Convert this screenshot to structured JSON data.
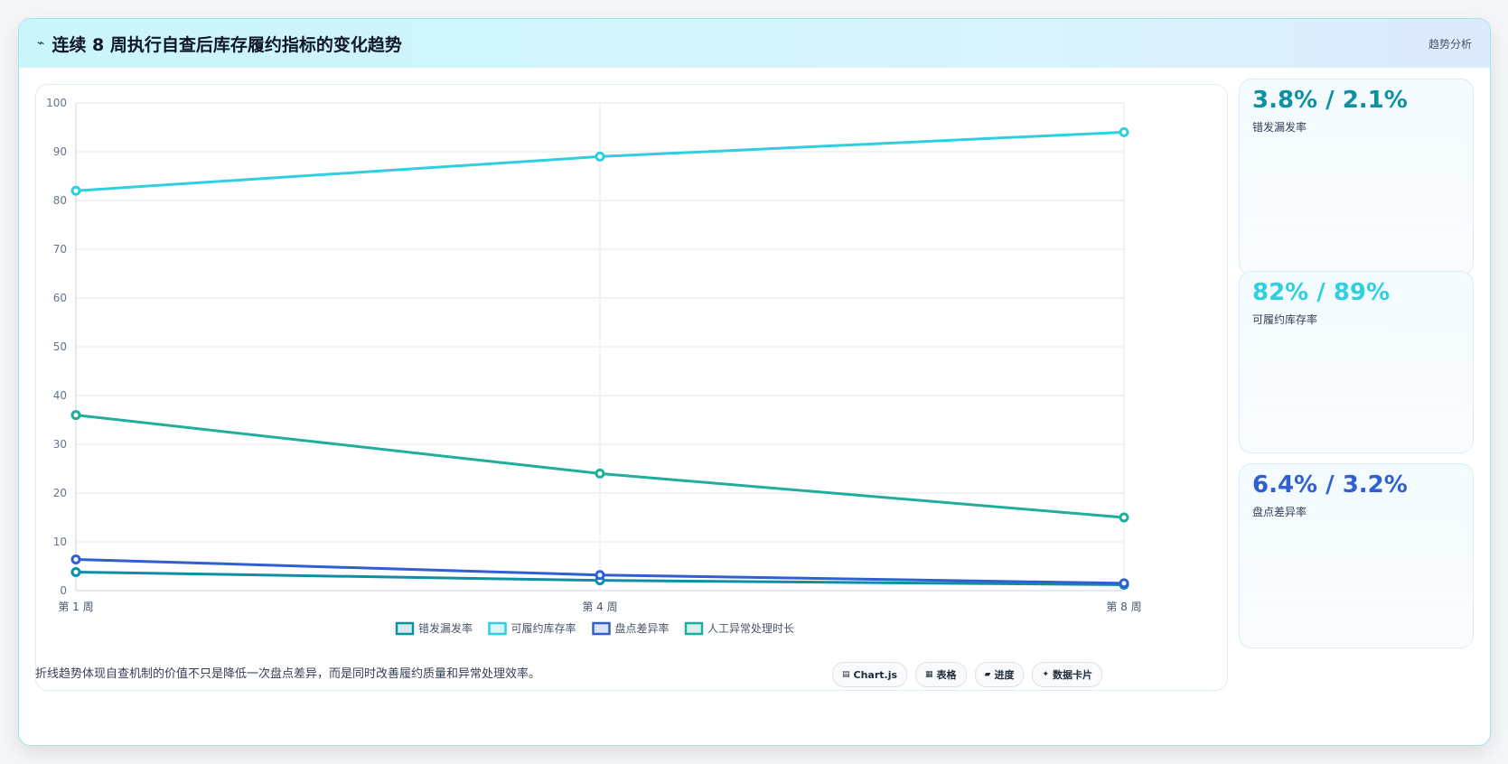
{
  "header": {
    "icon": "trend-line-icon",
    "title": "连续 8 周执行自查后库存履约指标的变化趋势",
    "tag": "趋势分析"
  },
  "chart_data": {
    "type": "line",
    "categories": [
      "第 1 周",
      "第 4 周",
      "第 8 周"
    ],
    "ylim": [
      0,
      100
    ],
    "yticks": [
      0,
      10,
      20,
      30,
      40,
      50,
      60,
      70,
      80,
      90,
      100
    ],
    "grid": true,
    "legend_position": "bottom",
    "series": [
      {
        "name": "错发漏发率",
        "values": [
          3.8,
          2.1,
          1.2
        ],
        "color": "#0e8fa3"
      },
      {
        "name": "可履约库存率",
        "values": [
          82,
          89,
          94
        ],
        "color": "#2fcfe0"
      },
      {
        "name": "盘点差异率",
        "values": [
          6.4,
          3.2,
          1.5
        ],
        "color": "#2f5fd0"
      },
      {
        "name": "人工异常处理时长",
        "values": [
          36,
          24,
          15
        ],
        "color": "#1fae9c"
      }
    ]
  },
  "stats": [
    {
      "value": "3.8% / 2.1%",
      "label": "错发漏发率",
      "color": "#0e8fa3"
    },
    {
      "value": "82% / 89%",
      "label": "可履约库存率",
      "color": "#2fcfe0"
    },
    {
      "value": "6.4% / 3.2%",
      "label": "盘点差异率",
      "color": "#2f5fd0"
    }
  ],
  "footer": {
    "text": "折线趋势体现自查机制的价值不只是降低一次盘点差异，而是同时改善履约质量和异常处理效率。",
    "chips": [
      {
        "icon": "▤",
        "label": "Chart.js"
      },
      {
        "icon": "▦",
        "label": "表格"
      },
      {
        "icon": "▰",
        "label": "进度"
      },
      {
        "icon": "✦",
        "label": "数据卡片"
      }
    ]
  }
}
